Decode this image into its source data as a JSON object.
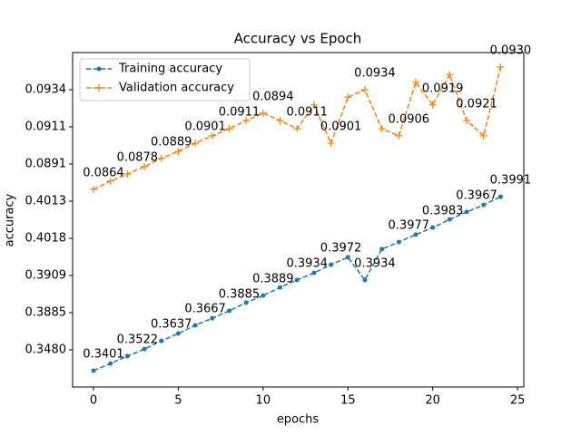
{
  "chart_data": {
    "type": "line",
    "title": "Accuracy vs Epoch",
    "x_label": "epochs",
    "y_label": "accuracy",
    "x": [
      0,
      1,
      2,
      3,
      4,
      5,
      6,
      7,
      8,
      9,
      10,
      11,
      12,
      13,
      14,
      15,
      16,
      17,
      18,
      19,
      20,
      21,
      22,
      23,
      24
    ],
    "xlim": [
      -1.23,
      25.37
    ],
    "xticks": [
      0,
      5,
      10,
      15,
      20,
      25
    ],
    "ylim": [
      0,
      9
    ],
    "yticks": [
      {
        "value": 1,
        "label": "0.3480"
      },
      {
        "value": 2,
        "label": "0.3885"
      },
      {
        "value": 3,
        "label": "0.3909"
      },
      {
        "value": 4,
        "label": "0.4018"
      },
      {
        "value": 5,
        "label": "0.4013"
      },
      {
        "value": 6,
        "label": "0.0891"
      },
      {
        "value": 7,
        "label": "0.0911"
      },
      {
        "value": 8,
        "label": "0.0934"
      }
    ],
    "legend": "upper left",
    "series": [
      {
        "name": "Training accuracy",
        "color": "#1f77b4",
        "marker": "dot",
        "values": [
          0.44,
          0.63,
          0.83,
          1.02,
          1.24,
          1.44,
          1.66,
          1.85,
          2.05,
          2.27,
          2.46,
          2.68,
          2.88,
          3.07,
          3.29,
          3.49,
          2.88,
          3.71,
          3.9,
          4.1,
          4.29,
          4.51,
          4.71,
          4.9,
          5.12
        ],
        "annotations": [
          {
            "x": 0,
            "text": "0.3401"
          },
          {
            "x": 2,
            "text": "0.3522"
          },
          {
            "x": 4,
            "text": "0.3637"
          },
          {
            "x": 6,
            "text": "0.3667"
          },
          {
            "x": 8,
            "text": "0.3885"
          },
          {
            "x": 10,
            "text": "0.3889"
          },
          {
            "x": 12,
            "text": "0.3934"
          },
          {
            "x": 14,
            "text": "0.3972"
          },
          {
            "x": 16,
            "text": "0.3934"
          },
          {
            "x": 18,
            "text": "0.3977"
          },
          {
            "x": 20,
            "text": "0.3983"
          },
          {
            "x": 22,
            "text": "0.3967"
          },
          {
            "x": 24,
            "text": "0.3991"
          }
        ]
      },
      {
        "name": "Validation accuracy",
        "color": "#ff7f0e",
        "marker": "plus",
        "values": [
          5.32,
          5.54,
          5.73,
          5.93,
          6.15,
          6.34,
          6.56,
          6.76,
          6.95,
          7.17,
          7.37,
          7.17,
          6.95,
          7.59,
          6.56,
          7.8,
          8.0,
          6.95,
          6.76,
          8.2,
          7.59,
          8.41,
          7.17,
          6.76,
          8.61
        ],
        "annotations": [
          {
            "x": 0,
            "text": "0.0864"
          },
          {
            "x": 2,
            "text": "0.0878"
          },
          {
            "x": 4,
            "text": "0.0889"
          },
          {
            "x": 6,
            "text": "0.0901"
          },
          {
            "x": 8,
            "text": "0.0911"
          },
          {
            "x": 10,
            "text": "0.0894"
          },
          {
            "x": 12,
            "text": "0.0911"
          },
          {
            "x": 14,
            "text": "0.0901"
          },
          {
            "x": 16,
            "text": "0.0934"
          },
          {
            "x": 18,
            "text": "0.0906"
          },
          {
            "x": 20,
            "text": "0.0919"
          },
          {
            "x": 22,
            "text": "0.0921"
          },
          {
            "x": 24,
            "text": "0.0930"
          }
        ]
      }
    ]
  }
}
